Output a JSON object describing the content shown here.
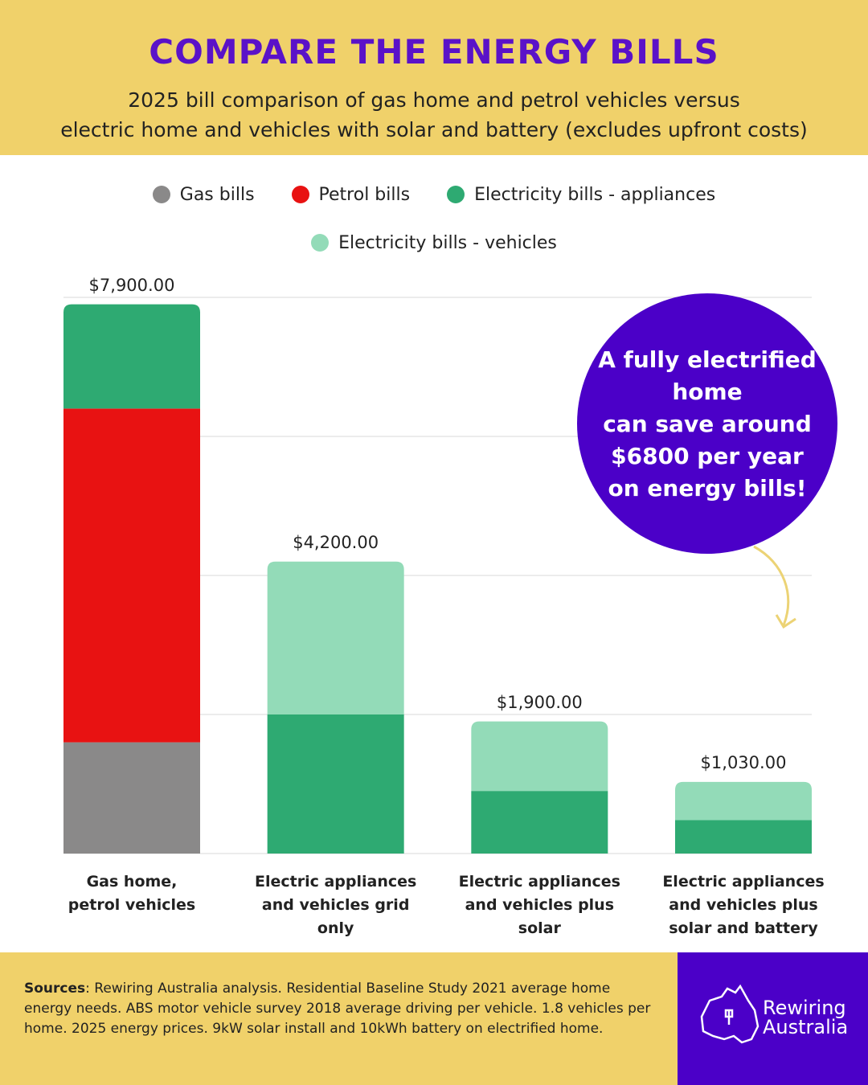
{
  "chart_data": {
    "type": "stacked_bar",
    "title": "COMPARE THE ENERGY BILLS",
    "subtitle": "2025 bill comparison of gas home and petrol vehicles versus\nelectric home and vehicles with solar and battery (excludes upfront costs)",
    "categories": [
      "Gas home,\npetrol vehicles",
      "Electric appliances\nand vehicles grid\nonly",
      "Electric appliances\nand vehicles plus\nsolar",
      "Electric appliances\nand vehicles plus\nsolar and battery"
    ],
    "series": [
      {
        "name": "Gas bills",
        "color": "#8a8989",
        "values": [
          1600,
          0,
          0,
          0
        ]
      },
      {
        "name": "Petrol bills",
        "color": "#e81212",
        "values": [
          4800,
          0,
          0,
          0
        ]
      },
      {
        "name": "Electricity bills - appliances",
        "color": "#2eaa72",
        "values": [
          1500,
          2000,
          900,
          480
        ]
      },
      {
        "name": "Electricity bills - vehicles",
        "color": "#93dbb8",
        "values": [
          0,
          2200,
          1000,
          550
        ]
      }
    ],
    "total_labels": [
      "$7,900.00",
      "$4,200.00",
      "$1,900.00",
      "$1,030.00"
    ],
    "ylim": [
      0,
      8000
    ],
    "yticks": [
      0,
      2000,
      4000,
      6000,
      8000
    ],
    "grid": true,
    "callout": "A fully electrified\nhome\ncan save around\n$6800 per year\non energy bills!",
    "sources_label": "Sources",
    "sources_text": ": Rewiring Australia analysis. Residential Baseline Study 2021 average home energy needs. ABS motor vehicle survey 2018 average driving per vehicle. 1.8 vehicles per home. 2025 energy prices. 9kW solar install and 10kWh battery on electrified home.",
    "logo": "Rewiring\nAustralia"
  }
}
